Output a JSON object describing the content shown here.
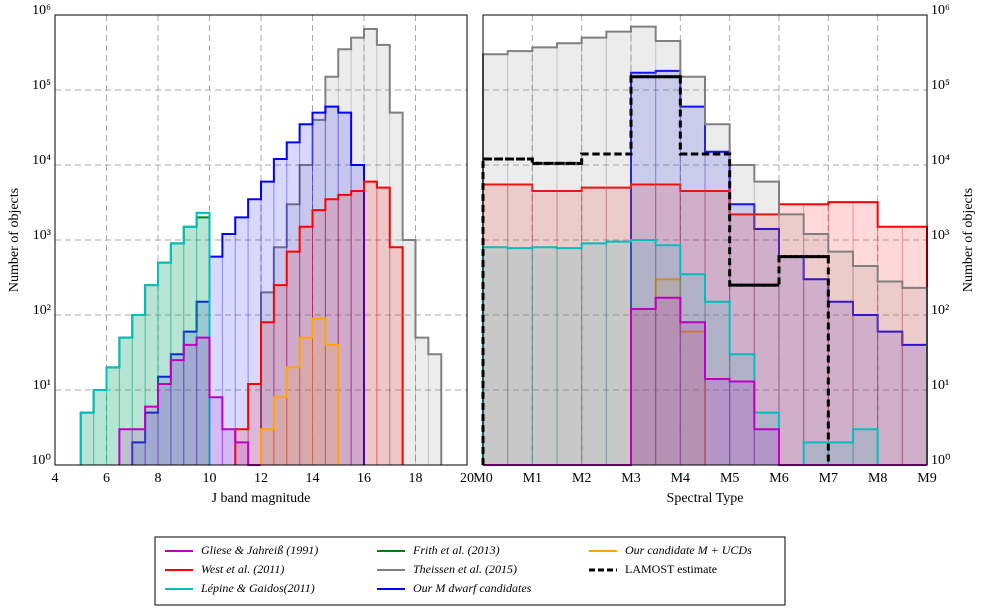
{
  "chart_data": [
    {
      "type": "histogram",
      "xlabel": "J band magnitude",
      "ylabel": "Number of objects",
      "log_y": true,
      "grid": true,
      "yaxis_side": "left",
      "xlim": [
        4,
        20
      ],
      "xticks": [
        4,
        6,
        8,
        10,
        12,
        14,
        16,
        18,
        20
      ],
      "ylim": [
        1,
        1000000
      ],
      "yticks": [
        {
          "value": 1,
          "label": "10⁰"
        },
        {
          "value": 10,
          "label": "10¹"
        },
        {
          "value": 100,
          "label": "10²"
        },
        {
          "value": 1000,
          "label": "10³"
        },
        {
          "value": 10000,
          "label": "10⁴"
        },
        {
          "value": 100000,
          "label": "10⁵"
        },
        {
          "value": 1000000,
          "label": "10⁶"
        }
      ],
      "series": [
        {
          "name": "Gliese & Jahreiß (1991)",
          "color": "#c000c0",
          "bins": [
            6.5,
            7,
            7.5,
            8,
            8.5,
            9,
            9.5,
            10,
            10.5,
            11,
            11.5,
            12
          ],
          "values": [
            3,
            3,
            6,
            12,
            25,
            40,
            50,
            8,
            3,
            2,
            1
          ]
        },
        {
          "name": "West et al. (2011)",
          "color": "#ff0000",
          "bins": [
            11,
            11.5,
            12,
            12.5,
            13,
            13.5,
            14,
            14.5,
            15,
            15.5,
            16,
            16.5,
            17,
            17.5
          ],
          "values": [
            3,
            12,
            80,
            250,
            700,
            1500,
            2500,
            3500,
            4000,
            4500,
            6000,
            5000,
            800
          ]
        },
        {
          "name": "Lépine & Gaidos(2011)",
          "color": "#00bfbf",
          "bins": [
            5,
            5.5,
            6,
            6.5,
            7,
            7.5,
            8,
            8.5,
            9,
            9.5,
            10
          ],
          "values": [
            5,
            10,
            20,
            50,
            100,
            250,
            500,
            900,
            1500,
            2300
          ]
        },
        {
          "name": "Frith et al. (2013)",
          "color": "#008000",
          "bins": [
            5,
            5.5,
            6,
            6.5,
            7,
            7.5,
            8,
            8.5,
            9,
            9.5,
            10
          ],
          "values": [
            5,
            10,
            20,
            50,
            100,
            250,
            500,
            900,
            1500,
            2000
          ]
        },
        {
          "name": "Theissen et al. (2015)",
          "color": "#808080",
          "bins": [
            12,
            12.5,
            13,
            13.5,
            14,
            14.5,
            15,
            15.5,
            16,
            16.5,
            17,
            17.5,
            18,
            18.5,
            19
          ],
          "values": [
            200,
            800,
            3000,
            10000,
            40000,
            150000,
            350000,
            500000,
            650000,
            400000,
            50000,
            1000,
            50,
            30
          ]
        },
        {
          "name": "Our M dwarf candidates",
          "color": "#0000ff",
          "bins": [
            7,
            7.5,
            8,
            8.5,
            9,
            9.5,
            10,
            10.5,
            11,
            11.5,
            12,
            12.5,
            13,
            13.5,
            14,
            14.5,
            15,
            15.5,
            16
          ],
          "values": [
            2,
            5,
            15,
            30,
            60,
            150,
            600,
            1200,
            2000,
            3500,
            6000,
            12000,
            20000,
            35000,
            50000,
            60000,
            50000,
            10000
          ]
        },
        {
          "name": "Our candidate M + UCDs",
          "color": "#ffa500",
          "bins": [
            12,
            12.5,
            13,
            13.5,
            14,
            14.5,
            15
          ],
          "values": [
            3,
            8,
            20,
            50,
            90,
            40
          ]
        }
      ]
    },
    {
      "type": "histogram",
      "xlabel": "Spectral Type",
      "ylabel": "Number of objects",
      "log_y": true,
      "grid": true,
      "yaxis_side": "right",
      "xlim": [
        0,
        9
      ],
      "xticks": [
        {
          "value": 0,
          "label": "M0"
        },
        {
          "value": 1,
          "label": "M1"
        },
        {
          "value": 2,
          "label": "M2"
        },
        {
          "value": 3,
          "label": "M3"
        },
        {
          "value": 4,
          "label": "M4"
        },
        {
          "value": 5,
          "label": "M5"
        },
        {
          "value": 6,
          "label": "M6"
        },
        {
          "value": 7,
          "label": "M7"
        },
        {
          "value": 8,
          "label": "M8"
        },
        {
          "value": 9,
          "label": "M9"
        }
      ],
      "ylim": [
        1,
        1000000
      ],
      "yticks": [
        {
          "value": 1,
          "label": "10⁰"
        },
        {
          "value": 10,
          "label": "10¹"
        },
        {
          "value": 100,
          "label": "10²"
        },
        {
          "value": 1000,
          "label": "10³"
        },
        {
          "value": 10000,
          "label": "10⁴"
        },
        {
          "value": 100000,
          "label": "10⁵"
        },
        {
          "value": 1000000,
          "label": "10⁶"
        }
      ],
      "series": [
        {
          "name": "Gliese & Jahreiß (1991)",
          "color": "#c000c0",
          "bins": [
            0,
            0.5,
            1,
            1.5,
            2,
            2.5,
            3,
            3.5,
            4,
            4.5,
            5,
            5.5,
            6,
            6.5,
            7,
            7.5,
            8,
            8.5,
            9
          ],
          "values": [
            1,
            1,
            1,
            1,
            1,
            1,
            120,
            170,
            80,
            14,
            13,
            3,
            1,
            1,
            1,
            1,
            1,
            1
          ]
        },
        {
          "name": "West et al. (2011)",
          "color": "#ff0000",
          "bins": [
            0,
            0.5,
            1,
            1.5,
            2,
            2.5,
            3,
            3.5,
            4,
            4.5,
            5,
            5.5,
            6,
            6.5,
            7,
            7.5,
            8,
            8.5,
            9
          ],
          "values": [
            5500,
            5500,
            4500,
            4500,
            5000,
            5000,
            5500,
            5500,
            4500,
            4500,
            2200,
            2200,
            3000,
            3000,
            3200,
            3200,
            1500,
            1500
          ]
        },
        {
          "name": "Lépine & Gaidos(2011)",
          "color": "#00bfbf",
          "bins": [
            0,
            0.5,
            1,
            1.5,
            2,
            2.5,
            3,
            3.5,
            4,
            4.5,
            5,
            5.5,
            6,
            6.5,
            7,
            7.5,
            8,
            8.5,
            9
          ],
          "values": [
            800,
            780,
            800,
            780,
            900,
            950,
            1000,
            850,
            350,
            150,
            30,
            5,
            1,
            2,
            2,
            3,
            1,
            1
          ]
        },
        {
          "name": "Theissen et al. (2015)",
          "color": "#808080",
          "bins": [
            0,
            0.5,
            1,
            1.5,
            2,
            2.5,
            3,
            3.5,
            4,
            4.5,
            5,
            5.5,
            6,
            6.5,
            7,
            7.5,
            8,
            8.5,
            9
          ],
          "values": [
            300000,
            330000,
            370000,
            420000,
            500000,
            600000,
            700000,
            450000,
            150000,
            35000,
            10000,
            6000,
            2200,
            1200,
            700,
            450,
            280,
            230
          ]
        },
        {
          "name": "Our M dwarf candidates",
          "color": "#0000ff",
          "bins": [
            0,
            0.5,
            1,
            1.5,
            2,
            2.5,
            3,
            3.5,
            4,
            4.5,
            5,
            5.5,
            6,
            6.5,
            7,
            7.5,
            8,
            8.5,
            9
          ],
          "values": [
            1,
            1,
            1,
            1,
            1,
            1,
            170000,
            180000,
            60000,
            15000,
            3000,
            1400,
            600,
            300,
            150,
            100,
            60,
            40
          ]
        },
        {
          "name": "Our candidate M + UCDs",
          "color": "#ffa500",
          "bins": [
            3,
            3.5,
            4,
            4.5
          ],
          "values": [
            120,
            300,
            60
          ]
        },
        {
          "name": "LAMOST estimate",
          "color": "#000000",
          "dashed": true,
          "bins": [
            0,
            1,
            2,
            3,
            4,
            5,
            6,
            7
          ],
          "values": [
            12000,
            10500,
            14000,
            150000,
            14000,
            250,
            600
          ]
        }
      ]
    }
  ],
  "legend": {
    "position": "bottom",
    "columns": 3,
    "entries": [
      "chart_data.0.series.0",
      "chart_data.0.series.1",
      "chart_data.0.series.2",
      "chart_data.0.series.3",
      "chart_data.0.series.4",
      "chart_data.0.series.5",
      "chart_data.0.series.6",
      "chart_data.1.series.6"
    ]
  }
}
